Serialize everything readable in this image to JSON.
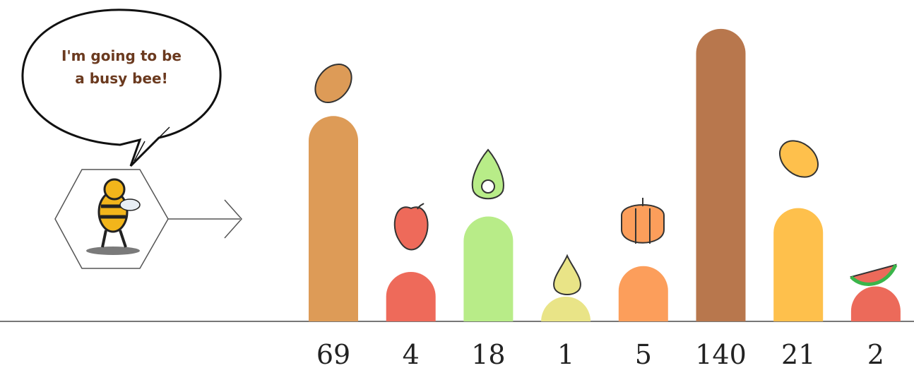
{
  "chart_data": {
    "type": "bar",
    "scale": "sqrt",
    "speech": [
      "I'm going to be",
      "a busy bee!"
    ],
    "values": [
      69,
      4,
      18,
      1,
      5,
      140,
      21,
      2
    ],
    "colors": [
      "#dd9b57",
      "#ee6a5a",
      "#b8ec88",
      "#e9e487",
      "#fc9e5b",
      "#b8774d",
      "#fec04c",
      "#ec6a5a"
    ]
  }
}
